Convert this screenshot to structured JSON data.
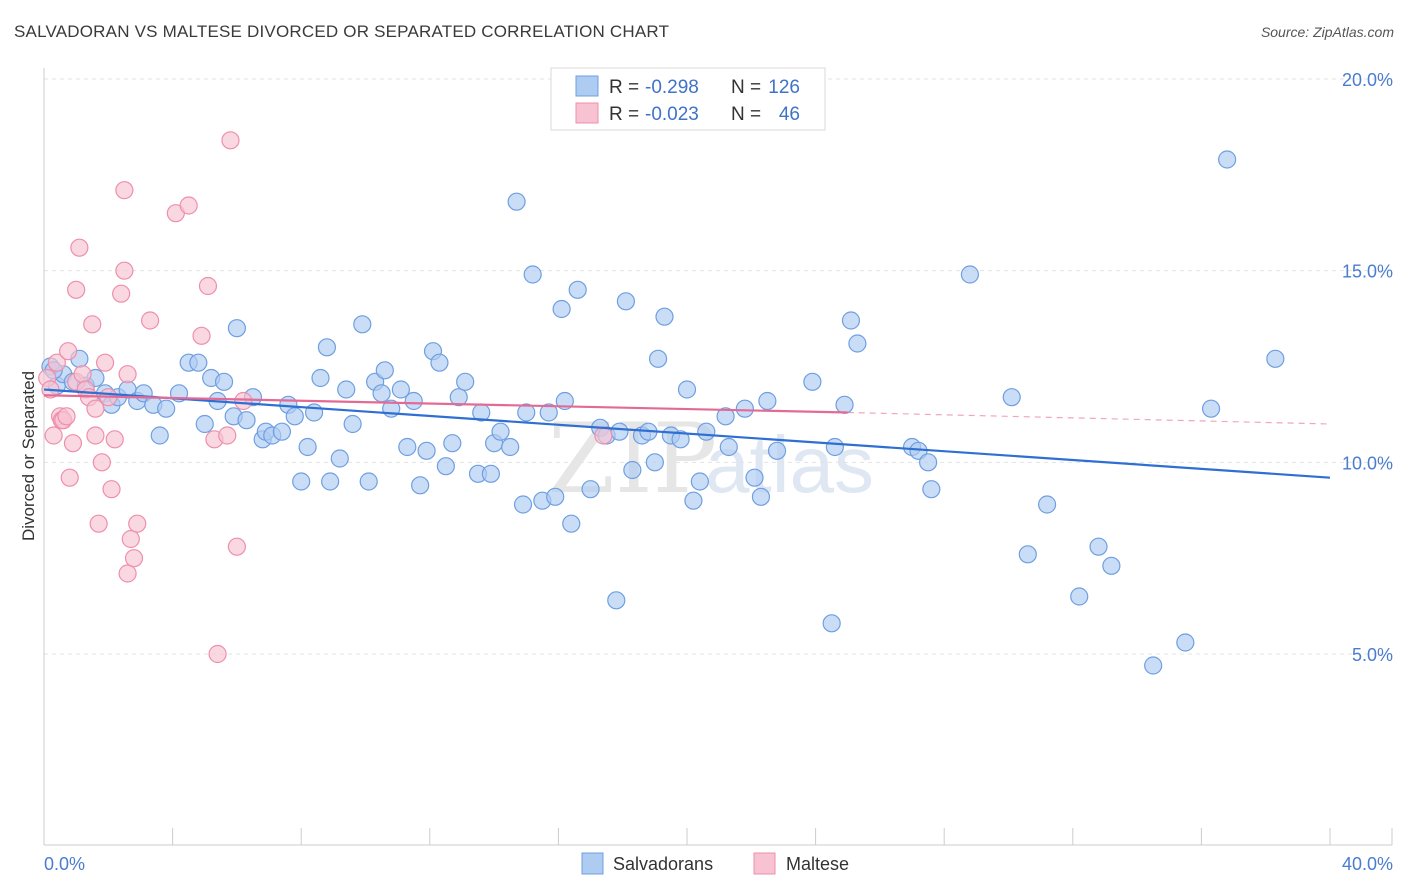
{
  "header": {
    "title": "SALVADORAN VS MALTESE DIVORCED OR SEPARATED CORRELATION CHART",
    "source": "Source: ZipAtlas.com"
  },
  "legend": {
    "row1": {
      "r_label": "R = ",
      "r_value": "-0.298",
      "n_label": "N = ",
      "n_value": "126"
    },
    "row2": {
      "r_label": "R = ",
      "r_value": "-0.023",
      "n_label": "N = ",
      "n_value": "46"
    }
  },
  "bottom_legend": {
    "series1": "Salvadorans",
    "series2": "Maltese"
  },
  "watermark": {
    "zip": "ZIP",
    "atlas": "atlas"
  },
  "colors": {
    "blue_fill": "#aecbf2",
    "blue_stroke": "#6f9fe0",
    "blue_line": "#2f6fd1",
    "pink_fill": "#f7c3d2",
    "pink_stroke": "#ee8fab",
    "pink_line": "#e46a96"
  },
  "chart_data": {
    "type": "scatter",
    "title": "SALVADORAN VS MALTESE DIVORCED OR SEPARATED CORRELATION CHART",
    "xlabel": "",
    "ylabel": "Divorced or Separated",
    "xlim": [
      0,
      40
    ],
    "ylim": [
      0,
      21
    ],
    "x_tick_labels": [
      "0.0%",
      "40.0%"
    ],
    "y_ticks": [
      5,
      10,
      15,
      20
    ],
    "y_tick_labels": [
      "5.0%",
      "10.0%",
      "15.0%",
      "20.0%"
    ],
    "grid": true,
    "legend_position": "top-center",
    "series": [
      {
        "name": "Salvadorans",
        "trend": {
          "x": [
            0,
            40
          ],
          "y": [
            11.9,
            9.6
          ]
        },
        "points": [
          [
            0.2,
            12.5
          ],
          [
            0.4,
            12.0
          ],
          [
            0.6,
            12.3
          ],
          [
            0.9,
            12.1
          ],
          [
            1.1,
            12.7
          ],
          [
            1.3,
            12.0
          ],
          [
            1.6,
            12.2
          ],
          [
            1.9,
            11.8
          ],
          [
            2.1,
            11.5
          ],
          [
            2.3,
            11.7
          ],
          [
            2.6,
            11.9
          ],
          [
            2.9,
            11.6
          ],
          [
            3.1,
            11.8
          ],
          [
            3.4,
            11.5
          ],
          [
            3.6,
            10.7
          ],
          [
            3.8,
            11.4
          ],
          [
            4.2,
            11.8
          ],
          [
            4.5,
            12.6
          ],
          [
            4.8,
            12.6
          ],
          [
            5.0,
            11.0
          ],
          [
            5.2,
            12.2
          ],
          [
            5.4,
            11.6
          ],
          [
            5.6,
            12.1
          ],
          [
            5.9,
            11.2
          ],
          [
            6.0,
            13.5
          ],
          [
            6.3,
            11.1
          ],
          [
            6.5,
            11.7
          ],
          [
            6.8,
            10.6
          ],
          [
            6.9,
            10.8
          ],
          [
            7.1,
            10.7
          ],
          [
            7.4,
            10.8
          ],
          [
            7.6,
            11.5
          ],
          [
            7.8,
            11.2
          ],
          [
            8.0,
            9.5
          ],
          [
            8.2,
            10.4
          ],
          [
            8.4,
            11.3
          ],
          [
            8.6,
            12.2
          ],
          [
            8.8,
            13.0
          ],
          [
            8.9,
            9.5
          ],
          [
            9.2,
            10.1
          ],
          [
            9.4,
            11.9
          ],
          [
            9.6,
            11.0
          ],
          [
            9.9,
            13.6
          ],
          [
            10.1,
            9.5
          ],
          [
            10.3,
            12.1
          ],
          [
            10.5,
            11.8
          ],
          [
            10.6,
            12.4
          ],
          [
            10.8,
            11.4
          ],
          [
            11.1,
            11.9
          ],
          [
            11.3,
            10.4
          ],
          [
            11.5,
            11.6
          ],
          [
            11.7,
            9.4
          ],
          [
            11.9,
            10.3
          ],
          [
            12.1,
            12.9
          ],
          [
            12.3,
            12.6
          ],
          [
            12.5,
            9.9
          ],
          [
            12.7,
            10.5
          ],
          [
            12.9,
            11.7
          ],
          [
            13.1,
            12.1
          ],
          [
            13.5,
            9.7
          ],
          [
            13.6,
            11.3
          ],
          [
            13.9,
            9.7
          ],
          [
            14.0,
            10.5
          ],
          [
            14.2,
            10.8
          ],
          [
            14.5,
            10.4
          ],
          [
            14.7,
            16.8
          ],
          [
            14.9,
            8.9
          ],
          [
            15.0,
            11.3
          ],
          [
            15.2,
            14.9
          ],
          [
            15.5,
            9.0
          ],
          [
            15.7,
            11.3
          ],
          [
            15.9,
            9.1
          ],
          [
            16.1,
            14.0
          ],
          [
            16.2,
            11.6
          ],
          [
            16.4,
            8.4
          ],
          [
            16.6,
            14.5
          ],
          [
            17.0,
            9.3
          ],
          [
            17.3,
            10.9
          ],
          [
            17.5,
            10.7
          ],
          [
            17.8,
            6.4
          ],
          [
            17.9,
            10.8
          ],
          [
            18.1,
            14.2
          ],
          [
            18.3,
            9.8
          ],
          [
            18.6,
            10.7
          ],
          [
            18.8,
            10.8
          ],
          [
            19.0,
            10.0
          ],
          [
            19.1,
            12.7
          ],
          [
            19.3,
            13.8
          ],
          [
            19.5,
            10.7
          ],
          [
            19.8,
            10.6
          ],
          [
            20.0,
            11.9
          ],
          [
            20.2,
            9.0
          ],
          [
            20.4,
            9.5
          ],
          [
            20.6,
            10.8
          ],
          [
            21.2,
            11.2
          ],
          [
            21.3,
            10.4
          ],
          [
            21.8,
            11.4
          ],
          [
            22.1,
            9.6
          ],
          [
            22.3,
            9.1
          ],
          [
            22.5,
            11.6
          ],
          [
            22.8,
            10.3
          ],
          [
            23.9,
            12.1
          ],
          [
            24.5,
            5.8
          ],
          [
            24.6,
            10.4
          ],
          [
            24.9,
            11.5
          ],
          [
            25.1,
            13.7
          ],
          [
            25.3,
            13.1
          ],
          [
            27.0,
            10.4
          ],
          [
            27.2,
            10.3
          ],
          [
            27.5,
            10.0
          ],
          [
            27.6,
            9.3
          ],
          [
            28.8,
            14.9
          ],
          [
            30.1,
            11.7
          ],
          [
            30.6,
            7.6
          ],
          [
            31.2,
            8.9
          ],
          [
            32.2,
            6.5
          ],
          [
            32.8,
            7.8
          ],
          [
            33.2,
            7.3
          ],
          [
            34.5,
            4.7
          ],
          [
            35.5,
            5.3
          ],
          [
            36.3,
            11.4
          ],
          [
            36.8,
            17.9
          ],
          [
            38.3,
            12.7
          ],
          [
            0.3,
            12.4
          ]
        ]
      },
      {
        "name": "Maltese",
        "trend": {
          "x": [
            0,
            25
          ],
          "y": [
            11.75,
            11.3
          ]
        },
        "trend_dashed": {
          "x": [
            25,
            40
          ],
          "y": [
            11.3,
            11.0
          ]
        },
        "points": [
          [
            0.1,
            12.2
          ],
          [
            0.2,
            11.9
          ],
          [
            0.3,
            10.7
          ],
          [
            0.4,
            12.6
          ],
          [
            0.5,
            11.2
          ],
          [
            0.55,
            11.1
          ],
          [
            0.6,
            11.1
          ],
          [
            0.7,
            11.2
          ],
          [
            0.75,
            12.9
          ],
          [
            0.8,
            9.6
          ],
          [
            0.9,
            10.5
          ],
          [
            1.0,
            12.1
          ],
          [
            1.0,
            14.5
          ],
          [
            1.1,
            15.6
          ],
          [
            1.2,
            12.3
          ],
          [
            1.3,
            11.9
          ],
          [
            1.4,
            11.7
          ],
          [
            1.5,
            13.6
          ],
          [
            1.6,
            11.4
          ],
          [
            1.6,
            10.7
          ],
          [
            1.7,
            8.4
          ],
          [
            1.8,
            10.0
          ],
          [
            1.9,
            12.6
          ],
          [
            2.0,
            11.7
          ],
          [
            2.1,
            9.3
          ],
          [
            2.2,
            10.6
          ],
          [
            2.4,
            14.4
          ],
          [
            2.5,
            15.0
          ],
          [
            2.5,
            17.1
          ],
          [
            2.6,
            12.3
          ],
          [
            2.6,
            7.1
          ],
          [
            2.7,
            8.0
          ],
          [
            2.8,
            7.5
          ],
          [
            2.9,
            8.4
          ],
          [
            3.3,
            13.7
          ],
          [
            4.1,
            16.5
          ],
          [
            4.5,
            16.7
          ],
          [
            4.9,
            13.3
          ],
          [
            5.1,
            14.6
          ],
          [
            5.3,
            10.6
          ],
          [
            5.4,
            5.0
          ],
          [
            5.7,
            10.7
          ],
          [
            5.8,
            18.4
          ],
          [
            6.0,
            7.8
          ],
          [
            6.2,
            11.6
          ],
          [
            17.4,
            10.7
          ]
        ]
      }
    ]
  }
}
